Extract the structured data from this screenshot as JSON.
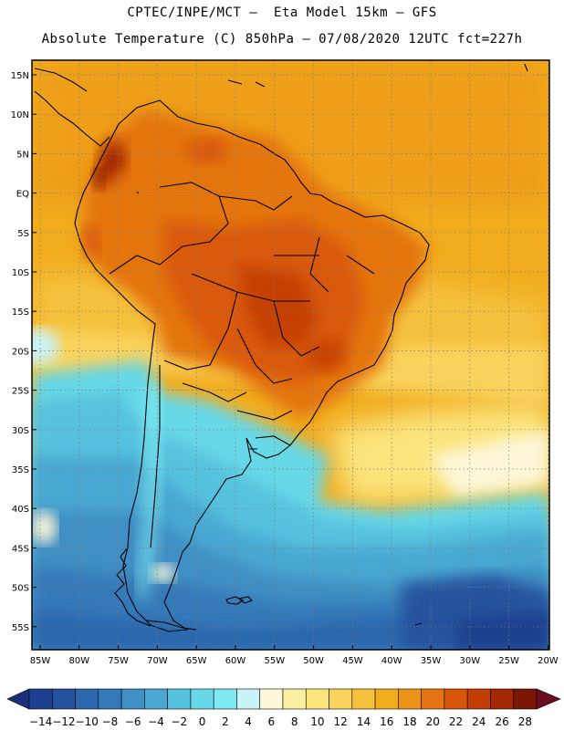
{
  "header": {
    "line1": "CPTEC/INPE/MCT –  Eta Model 15km – GFS",
    "line2": "Absolute Temperature (C) 850hPa – 07/08/2020 12UTC fct=227h"
  },
  "map": {
    "lat_labels": [
      "15N",
      "10N",
      "5N",
      "EQ",
      "5S",
      "10S",
      "15S",
      "20S",
      "25S",
      "30S",
      "35S",
      "40S",
      "45S",
      "50S",
      "55S"
    ],
    "lon_labels": [
      "85W",
      "80W",
      "75W",
      "70W",
      "65W",
      "60W",
      "55W",
      "50W",
      "45W",
      "40W",
      "35W",
      "30W",
      "25W",
      "20W"
    ]
  },
  "colorbar": {
    "labels": [
      "-14",
      "-12",
      "-10",
      "-8",
      "-6",
      "-4",
      "-2",
      "0",
      "2",
      "4",
      "6",
      "8",
      "10",
      "12",
      "14",
      "16",
      "18",
      "20",
      "22",
      "24",
      "26",
      "28"
    ],
    "colors": [
      "#1e3f8f",
      "#25529e",
      "#2c66ad",
      "#3479b8",
      "#3f8fc4",
      "#4aa8d2",
      "#57c2de",
      "#66d8e8",
      "#7ee9f2",
      "#c8f3f7",
      "#fdf6d8",
      "#fbf0a0",
      "#fbe47c",
      "#f9d35d",
      "#f5c13c",
      "#f1ac1e",
      "#ec9418",
      "#e47411",
      "#d8560a",
      "#c33e05",
      "#a32803",
      "#7a1702"
    ],
    "under_color": "#1a2f78",
    "over_color": "#6a0d1c"
  }
}
